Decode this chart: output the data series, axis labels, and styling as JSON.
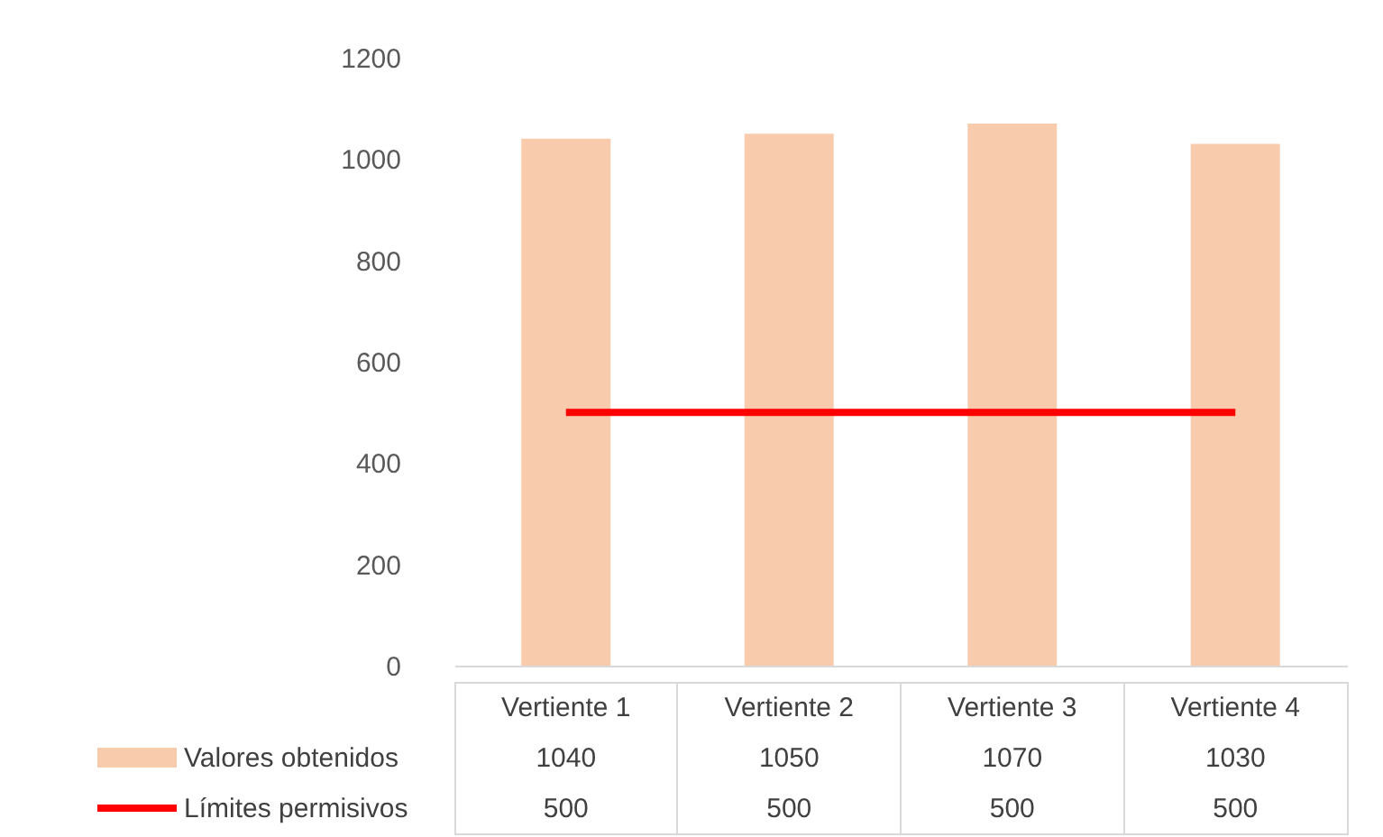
{
  "chart_data": {
    "type": "bar",
    "categories": [
      "Vertiente 1",
      "Vertiente 2",
      "Vertiente 3",
      "Vertiente 4"
    ],
    "series": [
      {
        "name": "Valores obtenidos",
        "color": "#f8cbad",
        "values": [
          1040,
          1050,
          1070,
          1030
        ]
      },
      {
        "name": "Límites permisivos",
        "type": "line",
        "color": "#ff0000",
        "values": [
          500,
          500,
          500,
          500
        ]
      }
    ],
    "ylim": [
      0,
      1200
    ],
    "yticks": [
      0,
      200,
      400,
      600,
      800,
      1000,
      1200
    ],
    "grid": false,
    "data_labels": true,
    "legend": "bottom"
  }
}
